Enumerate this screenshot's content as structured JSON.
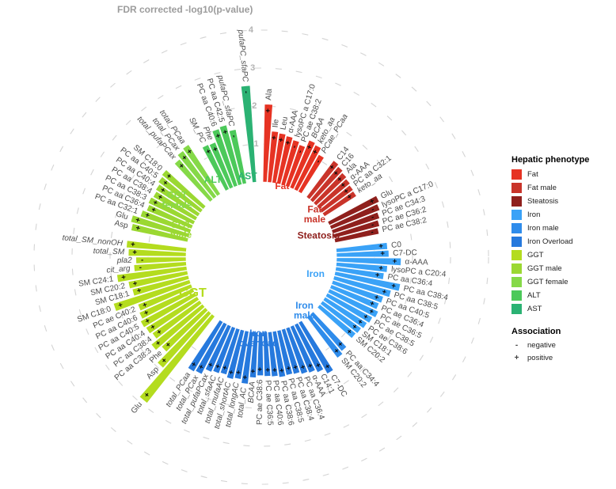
{
  "figure": {
    "axis_title": "FDR corrected -log10(p-value)",
    "legend": {
      "phenotype_title": "Hepatic phenotype",
      "association_title": "Association",
      "association_items": [
        {
          "symbol": "-",
          "label": "negative"
        },
        {
          "symbol": "+",
          "label": "positive"
        }
      ]
    }
  },
  "chart_data": {
    "type": "bar",
    "subtype": "circular-radial",
    "title": "FDR corrected -log10(p-value)",
    "radial_axis": {
      "label": "FDR corrected -log10(p-value)",
      "ticks": [
        1,
        2,
        3,
        4
      ],
      "range": [
        0,
        4
      ],
      "grid": "dashed"
    },
    "sections": [
      {
        "name": "Fat",
        "legend_label": "Fat",
        "inner_label_lines": [
          "Fat"
        ],
        "color": "#e63323",
        "bars": [
          {
            "metabolite": "Ala",
            "value": 2.05,
            "sign": "+",
            "italic": false
          },
          {
            "metabolite": "Ile",
            "value": 1.35,
            "sign": "+",
            "italic": false
          },
          {
            "metabolite": "Leu",
            "value": 1.32,
            "sign": "+",
            "italic": false
          },
          {
            "metabolite": "α-AAA",
            "value": 1.28,
            "sign": "+",
            "italic": false
          },
          {
            "metabolite": "lysoPC a C17:0",
            "value": 1.22,
            "sign": "-",
            "italic": false
          },
          {
            "metabolite": "PC ae C38:2",
            "value": 1.15,
            "sign": "-",
            "italic": false
          },
          {
            "metabolite": "BCAA",
            "value": 1.35,
            "sign": "+",
            "italic": true
          },
          {
            "metabolite": "keto_aa",
            "value": 1.3,
            "sign": "+",
            "italic": true
          },
          {
            "metabolite": "PCae_PCaa",
            "value": 1.12,
            "sign": "-",
            "italic": true
          }
        ]
      },
      {
        "name": "Fat male",
        "legend_label": "Fat male",
        "inner_label_lines": [
          "Fat",
          "male"
        ],
        "color": "#c9342a",
        "bars": [
          {
            "metabolite": "C14",
            "value": 1.2,
            "sign": "+",
            "italic": false
          },
          {
            "metabolite": "C16",
            "value": 1.15,
            "sign": "+",
            "italic": false
          },
          {
            "metabolite": "Ala",
            "value": 1.1,
            "sign": "+",
            "italic": false
          },
          {
            "metabolite": "α-AAA",
            "value": 1.06,
            "sign": "+",
            "italic": false
          },
          {
            "metabolite": "PC aa C32:1",
            "value": 1.02,
            "sign": "+",
            "italic": false
          },
          {
            "metabolite": "keto_aa",
            "value": 1.0,
            "sign": "+",
            "italic": true
          }
        ]
      },
      {
        "name": "Steatosis",
        "legend_label": "Steatosis",
        "inner_label_lines": [
          "Steatosis"
        ],
        "color": "#8f201d",
        "bars": [
          {
            "metabolite": "Glu",
            "value": 1.45,
            "sign": "+",
            "italic": false
          },
          {
            "metabolite": "lysoPC a C17:0",
            "value": 1.38,
            "sign": "-",
            "italic": false
          },
          {
            "metabolite": "PC ae C34:3",
            "value": 1.3,
            "sign": "-",
            "italic": false
          },
          {
            "metabolite": "PC ae C36:2",
            "value": 1.24,
            "sign": "-",
            "italic": false
          },
          {
            "metabolite": "PC ae C38:2",
            "value": 1.18,
            "sign": "-",
            "italic": false
          }
        ]
      },
      {
        "name": "Iron",
        "legend_label": "Iron",
        "inner_label_lines": [
          "Iron"
        ],
        "color": "#3aa2f7",
        "bars": [
          {
            "metabolite": "C0",
            "value": 1.35,
            "sign": "+",
            "italic": false
          },
          {
            "metabolite": "C7-DC",
            "value": 1.38,
            "sign": "+",
            "italic": false
          },
          {
            "metabolite": "α-AAA",
            "value": 1.7,
            "sign": "+",
            "italic": false
          },
          {
            "metabolite": "lysoPC a C20:4",
            "value": 1.35,
            "sign": "+",
            "italic": false
          },
          {
            "metabolite": "PC aa C36:4",
            "value": 1.28,
            "sign": "+",
            "italic": false
          },
          {
            "metabolite": "PC aa C38:4",
            "value": 1.75,
            "sign": "+",
            "italic": false
          },
          {
            "metabolite": "PC aa C38:5",
            "value": 1.55,
            "sign": "+",
            "italic": false
          },
          {
            "metabolite": "PC aa C40:5",
            "value": 1.4,
            "sign": "+",
            "italic": false
          },
          {
            "metabolite": "PC ae C36:4",
            "value": 1.35,
            "sign": "+",
            "italic": false
          },
          {
            "metabolite": "PC ae C36:5",
            "value": 1.42,
            "sign": "+",
            "italic": false
          },
          {
            "metabolite": "PC ae C38:5",
            "value": 1.35,
            "sign": "+",
            "italic": false
          },
          {
            "metabolite": "PC ae C38:6",
            "value": 1.3,
            "sign": "+",
            "italic": false
          },
          {
            "metabolite": "SM C18:1",
            "value": 1.25,
            "sign": "+",
            "italic": false
          },
          {
            "metabolite": "SM C20:2",
            "value": 1.22,
            "sign": "+",
            "italic": false
          }
        ]
      },
      {
        "name": "Iron male",
        "legend_label": "Iron male",
        "inner_label_lines": [
          "Iron",
          "male"
        ],
        "color": "#2f8ceb",
        "bars": [
          {
            "metabolite": "PC aa C34:4",
            "value": 1.28,
            "sign": "+",
            "italic": false
          },
          {
            "metabolite": "SM C20:2",
            "value": 1.35,
            "sign": "+",
            "italic": false
          }
        ]
      },
      {
        "name": "Iron overload",
        "legend_label": "Iron Overload",
        "inner_label_lines": [
          "Iron",
          "overload"
        ],
        "color": "#2679dd",
        "bars": [
          {
            "metabolite": "C7-DC",
            "value": 1.55,
            "sign": "+",
            "italic": false
          },
          {
            "metabolite": "C14:1",
            "value": 1.4,
            "sign": "+",
            "italic": false
          },
          {
            "metabolite": "α-AAA",
            "value": 1.32,
            "sign": "+",
            "italic": false
          },
          {
            "metabolite": "PC aa C36:4",
            "value": 1.28,
            "sign": "+",
            "italic": false
          },
          {
            "metabolite": "PC aa C38:4",
            "value": 1.22,
            "sign": "+",
            "italic": false
          },
          {
            "metabolite": "PC aa C38:5",
            "value": 1.2,
            "sign": "+",
            "italic": false
          },
          {
            "metabolite": "PC aa C38:6",
            "value": 1.22,
            "sign": "+",
            "italic": false
          },
          {
            "metabolite": "PC aa C40:6",
            "value": 1.18,
            "sign": "+",
            "italic": false
          },
          {
            "metabolite": "PC ae C36:5",
            "value": 1.16,
            "sign": "+",
            "italic": false
          },
          {
            "metabolite": "PC ae C38:6",
            "value": 1.14,
            "sign": "+",
            "italic": false
          },
          {
            "metabolite": "BCAA",
            "value": 1.2,
            "sign": "+",
            "italic": true
          },
          {
            "metabolite": "total_AC",
            "value": 1.38,
            "sign": "+",
            "italic": true
          },
          {
            "metabolite": "total_longAC",
            "value": 1.28,
            "sign": "+",
            "italic": true
          },
          {
            "metabolite": "total_shortAC",
            "value": 1.32,
            "sign": "+",
            "italic": true
          },
          {
            "metabolite": "total_mufaAC",
            "value": 1.25,
            "sign": "+",
            "italic": true
          },
          {
            "metabolite": "total_sfaAC",
            "value": 1.28,
            "sign": "+",
            "italic": true
          },
          {
            "metabolite": "total_pufaPCax",
            "value": 1.32,
            "sign": "+",
            "italic": true
          },
          {
            "metabolite": "total_PCax",
            "value": 1.48,
            "sign": "+",
            "italic": true
          },
          {
            "metabolite": "total_PCaa",
            "value": 1.52,
            "sign": "+",
            "italic": true
          }
        ]
      },
      {
        "name": "GGT",
        "legend_label": "GGT",
        "inner_label_lines": [
          "GGT"
        ],
        "color": "#b4dc1f",
        "bars": [
          {
            "metabolite": "Glu",
            "value": 2.9,
            "sign": "+",
            "italic": false
          },
          {
            "metabolite": "Asp",
            "value": 1.92,
            "sign": "+",
            "italic": false
          },
          {
            "metabolite": "Phe",
            "value": 1.55,
            "sign": "+",
            "italic": false
          },
          {
            "metabolite": "PC aa C38:3",
            "value": 1.72,
            "sign": "+",
            "italic": false
          },
          {
            "metabolite": "PC aa C38:4",
            "value": 1.52,
            "sign": "+",
            "italic": false
          },
          {
            "metabolite": "PC aa C40:4",
            "value": 1.58,
            "sign": "+",
            "italic": false
          },
          {
            "metabolite": "PC aa C40:5",
            "value": 1.62,
            "sign": "+",
            "italic": false
          },
          {
            "metabolite": "PC aa C40:6",
            "value": 1.55,
            "sign": "+",
            "italic": false
          },
          {
            "metabolite": "PC ae C40:2",
            "value": 1.5,
            "sign": "+",
            "italic": false
          },
          {
            "metabolite": "SM C18:0",
            "value": 2.1,
            "sign": "+",
            "italic": false
          },
          {
            "metabolite": "SM C18:1",
            "value": 1.52,
            "sign": "+",
            "italic": false
          },
          {
            "metabolite": "SM C20:2",
            "value": 1.58,
            "sign": "+",
            "italic": false
          },
          {
            "metabolite": "SM C24:1",
            "value": 1.85,
            "sign": "+",
            "italic": false
          },
          {
            "metabolite": "cit_arg",
            "value": 1.38,
            "sign": "-",
            "italic": true
          },
          {
            "metabolite": "pla2",
            "value": 1.32,
            "sign": "-",
            "italic": true
          },
          {
            "metabolite": "total_SM",
            "value": 1.52,
            "sign": "+",
            "italic": true
          },
          {
            "metabolite": "total_SM_nonOH",
            "value": 1.58,
            "sign": "+",
            "italic": true
          }
        ]
      },
      {
        "name": "GGT male",
        "legend_label": "GGT male",
        "inner_label_lines": [
          "GGT",
          "male"
        ],
        "color": "#9bd832",
        "bars": [
          {
            "metabolite": "Asp",
            "value": 1.52,
            "sign": "+",
            "italic": false
          },
          {
            "metabolite": "Glu",
            "value": 1.58,
            "sign": "+",
            "italic": false
          },
          {
            "metabolite": "PC aa C32:1",
            "value": 1.38,
            "sign": "+",
            "italic": false
          },
          {
            "metabolite": "PC aa C36:4",
            "value": 1.28,
            "sign": "+",
            "italic": false
          },
          {
            "metabolite": "PC aa C38:3",
            "value": 1.32,
            "sign": "+",
            "italic": false
          },
          {
            "metabolite": "PC aa C38:4",
            "value": 1.28,
            "sign": "+",
            "italic": false
          },
          {
            "metabolite": "PC aa C40:4",
            "value": 1.32,
            "sign": "+",
            "italic": false
          },
          {
            "metabolite": "PC aa C40:5",
            "value": 1.38,
            "sign": "+",
            "italic": false
          },
          {
            "metabolite": "SM C18:0",
            "value": 1.42,
            "sign": "+",
            "italic": false
          }
        ]
      },
      {
        "name": "GGT female",
        "legend_label": "GGT female",
        "inner_label_lines": [
          "GGT",
          "female"
        ],
        "color": "#85d948",
        "bars": [
          {
            "metabolite": "total_pufaPCax",
            "value": 1.38,
            "sign": "+",
            "italic": true
          },
          {
            "metabolite": "total_PCax",
            "value": 1.5,
            "sign": "+",
            "italic": true
          },
          {
            "metabolite": "total_PCaa",
            "value": 1.55,
            "sign": "+",
            "italic": true
          }
        ]
      },
      {
        "name": "ALT",
        "legend_label": "ALT",
        "inner_label_lines": [
          "ALT"
        ],
        "color": "#4cc95a",
        "bars": [
          {
            "metabolite": "SM_PC",
            "value": 1.3,
            "sign": "+",
            "italic": true
          },
          {
            "metabolite": "Phe",
            "value": 1.28,
            "sign": "+",
            "italic": true
          },
          {
            "metabolite": "PC aa C40:6",
            "value": 1.58,
            "sign": "+",
            "italic": false
          },
          {
            "metabolite": "PC aa C42:5",
            "value": 1.62,
            "sign": "+",
            "italic": false
          },
          {
            "metabolite": "pufaPC_sfaPC",
            "value": 1.45,
            "sign": "-",
            "italic": true
          }
        ]
      },
      {
        "name": "AST",
        "legend_label": "AST",
        "inner_label_lines": [
          "AST"
        ],
        "color": "#2bb273",
        "bars": [
          {
            "metabolite": "pufaPC_sfaPC",
            "value": 2.55,
            "sign": "-",
            "italic": true
          }
        ]
      }
    ]
  }
}
